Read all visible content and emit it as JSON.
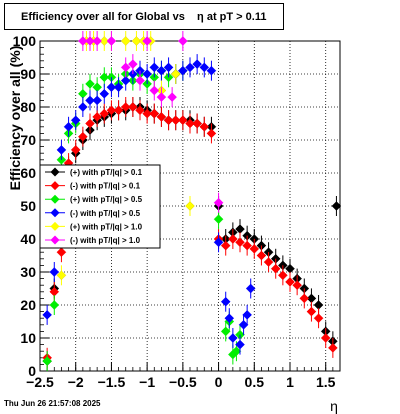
{
  "title": "Efficiency over all for Global vs    η at pT > 0.11",
  "footer": "Thu Jun 26 21:57:08 2025",
  "chart_data": {
    "type": "scatter",
    "title": "Efficiency over all for Global vs    η at pT > 0.11",
    "xlabel": "η",
    "ylabel": "Efficiency over all (%)",
    "xlim": [
      -2.5,
      1.7
    ],
    "ylim": [
      0,
      100
    ],
    "xticks": [
      -2.5,
      -2,
      -1.5,
      -1,
      -0.5,
      0,
      0.5,
      1,
      1.5
    ],
    "xtick_labels": [
      "−2.5",
      "−2",
      "−1.5",
      "−1",
      "−0.5",
      "0",
      "0.5",
      "1",
      "1.5"
    ],
    "yticks": [
      0,
      10,
      20,
      30,
      40,
      50,
      60,
      70,
      80,
      90,
      100
    ],
    "grid": true,
    "legend_position": "left",
    "series": [
      {
        "name": "(+) with pT/|q| > 0.1",
        "color": "#000000",
        "marker": "diamond",
        "points": [
          [
            -2.4,
            3
          ],
          [
            -2.3,
            25
          ],
          [
            -2.2,
            55
          ],
          [
            -2.1,
            62
          ],
          [
            -2.0,
            66
          ],
          [
            -1.9,
            70
          ],
          [
            -1.8,
            73
          ],
          [
            -1.7,
            76
          ],
          [
            -1.6,
            77
          ],
          [
            -1.5,
            78
          ],
          [
            -1.4,
            79
          ],
          [
            -1.3,
            79
          ],
          [
            -1.2,
            80
          ],
          [
            -1.1,
            80
          ],
          [
            -1.0,
            79
          ],
          [
            -0.9,
            78
          ],
          [
            -0.8,
            77
          ],
          [
            -0.7,
            76
          ],
          [
            -0.6,
            76
          ],
          [
            -0.5,
            76
          ],
          [
            -0.4,
            76
          ],
          [
            -0.3,
            75
          ],
          [
            -0.2,
            74
          ],
          [
            -0.1,
            74
          ],
          [
            0.0,
            50
          ],
          [
            0.1,
            40
          ],
          [
            0.2,
            42
          ],
          [
            0.3,
            43
          ],
          [
            0.4,
            41
          ],
          [
            0.5,
            40
          ],
          [
            0.6,
            38
          ],
          [
            0.7,
            36
          ],
          [
            0.8,
            34
          ],
          [
            0.9,
            32
          ],
          [
            1.0,
            31
          ],
          [
            1.1,
            28
          ],
          [
            1.2,
            25
          ],
          [
            1.3,
            22
          ],
          [
            1.4,
            20
          ],
          [
            1.5,
            12
          ],
          [
            1.6,
            9
          ],
          [
            1.65,
            50
          ]
        ]
      },
      {
        "name": "(-) with pT/|q| > 0.1",
        "color": "#ff0000",
        "marker": "diamond",
        "points": [
          [
            -2.4,
            4
          ],
          [
            -2.3,
            24
          ],
          [
            -2.2,
            36
          ],
          [
            -2.1,
            63
          ],
          [
            -2.0,
            67
          ],
          [
            -1.9,
            71
          ],
          [
            -1.8,
            75
          ],
          [
            -1.7,
            77
          ],
          [
            -1.6,
            78
          ],
          [
            -1.5,
            79
          ],
          [
            -1.4,
            79
          ],
          [
            -1.3,
            80
          ],
          [
            -1.2,
            80
          ],
          [
            -1.1,
            79
          ],
          [
            -1.0,
            78
          ],
          [
            -0.9,
            78
          ],
          [
            -0.8,
            77
          ],
          [
            -0.7,
            76
          ],
          [
            -0.6,
            76
          ],
          [
            -0.5,
            76
          ],
          [
            -0.4,
            75
          ],
          [
            -0.3,
            75
          ],
          [
            -0.2,
            74
          ],
          [
            -0.1,
            72
          ],
          [
            0.0,
            40
          ],
          [
            0.1,
            38
          ],
          [
            0.2,
            40
          ],
          [
            0.3,
            39
          ],
          [
            0.4,
            38
          ],
          [
            0.5,
            37
          ],
          [
            0.6,
            35
          ],
          [
            0.7,
            33
          ],
          [
            0.8,
            31
          ],
          [
            0.9,
            29
          ],
          [
            1.0,
            27
          ],
          [
            1.1,
            26
          ],
          [
            1.2,
            22
          ],
          [
            1.3,
            18
          ],
          [
            1.4,
            16
          ],
          [
            1.5,
            10
          ],
          [
            1.6,
            7
          ]
        ]
      },
      {
        "name": "(+) with pT/|q| > 0.5",
        "color": "#00ee00",
        "marker": "diamond",
        "points": [
          [
            -2.4,
            3
          ],
          [
            -2.3,
            20
          ],
          [
            -2.2,
            64
          ],
          [
            -2.1,
            72
          ],
          [
            -2.0,
            75
          ],
          [
            -1.9,
            84
          ],
          [
            -1.8,
            87
          ],
          [
            -1.7,
            86
          ],
          [
            -1.6,
            89
          ],
          [
            -1.5,
            89
          ],
          [
            -1.4,
            87
          ],
          [
            -1.3,
            90
          ],
          [
            -1.2,
            88
          ],
          [
            -1.1,
            90
          ],
          [
            -1.0,
            87
          ],
          [
            -0.9,
            89
          ],
          [
            -0.8,
            91
          ],
          [
            -0.7,
            89
          ],
          [
            -0.6,
            90
          ],
          [
            -0.5,
            91
          ],
          [
            0.0,
            46
          ],
          [
            0.1,
            12
          ],
          [
            0.15,
            15
          ],
          [
            0.2,
            5
          ],
          [
            0.25,
            6
          ],
          [
            0.3,
            11
          ]
        ]
      },
      {
        "name": "(-) with pT/|q| > 0.5",
        "color": "#0000ff",
        "marker": "diamond",
        "points": [
          [
            -2.4,
            17
          ],
          [
            -2.3,
            30
          ],
          [
            -2.2,
            67
          ],
          [
            -2.1,
            74
          ],
          [
            -2.0,
            76
          ],
          [
            -1.9,
            80
          ],
          [
            -1.8,
            82
          ],
          [
            -1.7,
            82
          ],
          [
            -1.6,
            84
          ],
          [
            -1.5,
            86
          ],
          [
            -1.4,
            86
          ],
          [
            -1.3,
            88
          ],
          [
            -1.2,
            90
          ],
          [
            -1.1,
            91
          ],
          [
            -1.0,
            90
          ],
          [
            -0.9,
            92
          ],
          [
            -0.8,
            91
          ],
          [
            -0.7,
            92
          ],
          [
            -0.6,
            90
          ],
          [
            -0.5,
            91
          ],
          [
            -0.4,
            92
          ],
          [
            -0.3,
            93
          ],
          [
            -0.2,
            92
          ],
          [
            -0.1,
            91
          ],
          [
            0.0,
            39
          ],
          [
            0.1,
            21
          ],
          [
            0.15,
            16
          ],
          [
            0.2,
            10
          ],
          [
            0.3,
            8
          ],
          [
            0.35,
            14
          ],
          [
            0.4,
            17
          ],
          [
            0.45,
            25
          ]
        ]
      },
      {
        "name": "(+) with pT/|q| > 1.0",
        "color": "#ffff00",
        "marker": "diamond",
        "points": [
          [
            -2.2,
            29
          ],
          [
            -1.85,
            100
          ],
          [
            -1.75,
            100
          ],
          [
            -1.6,
            100
          ],
          [
            -1.5,
            100
          ],
          [
            -1.3,
            100
          ],
          [
            -1.15,
            100
          ],
          [
            -1.05,
            100
          ],
          [
            -0.95,
            100
          ],
          [
            -0.8,
            85
          ],
          [
            -0.6,
            90
          ],
          [
            -0.4,
            50
          ]
        ]
      },
      {
        "name": "(-) with pT/|q| > 1.0",
        "color": "#ff00ff",
        "marker": "diamond",
        "points": [
          [
            -1.9,
            100
          ],
          [
            -1.8,
            100
          ],
          [
            -1.7,
            100
          ],
          [
            -1.5,
            100
          ],
          [
            -1.3,
            92
          ],
          [
            -1.2,
            93
          ],
          [
            -1.1,
            88
          ],
          [
            -1.0,
            100
          ],
          [
            -0.9,
            85
          ],
          [
            -0.8,
            83
          ],
          [
            -0.65,
            83
          ],
          [
            -0.5,
            100
          ],
          [
            0.0,
            51
          ]
        ]
      }
    ]
  }
}
